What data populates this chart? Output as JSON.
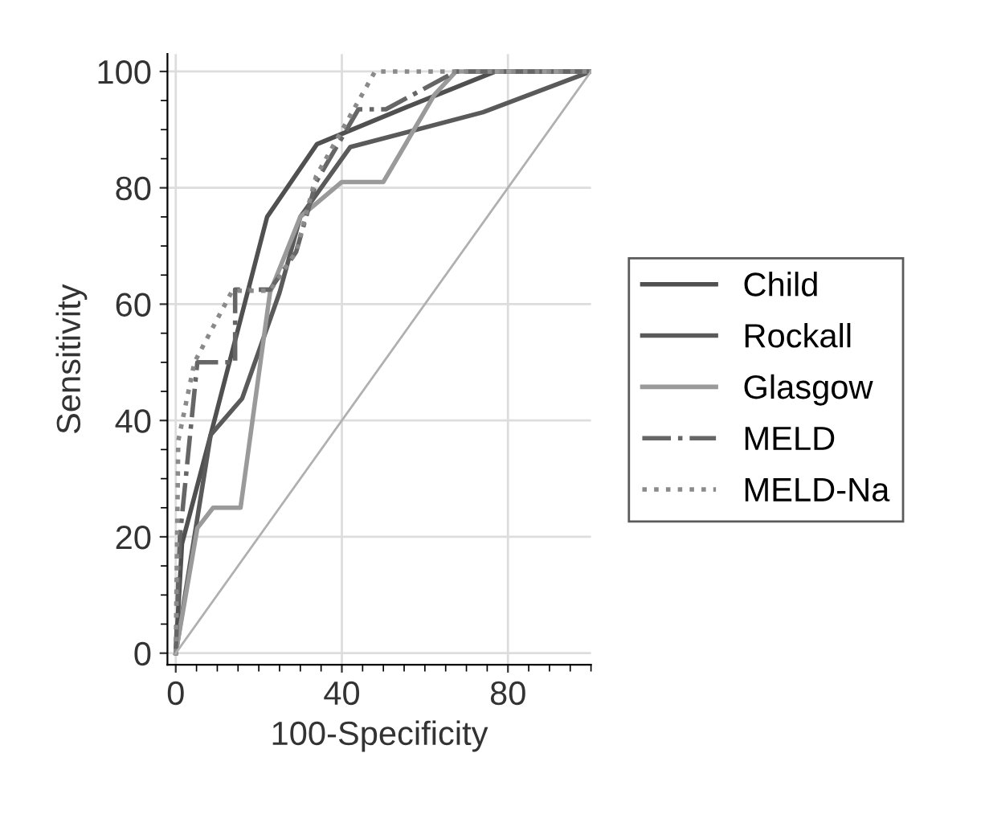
{
  "chart_data": {
    "type": "line",
    "xlabel": "100-Specificity",
    "ylabel": "Sensitivity",
    "xlim": [
      -2,
      100
    ],
    "ylim": [
      -2,
      103
    ],
    "xticks": [
      0,
      40,
      80
    ],
    "yticks": [
      0,
      20,
      40,
      60,
      80,
      100
    ],
    "grid": true,
    "legend": "right",
    "marker": "none",
    "series": [
      {
        "name": "Child",
        "color": "#505050",
        "line_style": "solid",
        "x": [
          0,
          1.5,
          8.4,
          22,
          34,
          56,
          77,
          100
        ],
        "values": [
          0,
          18.8,
          37.5,
          75,
          87.5,
          94,
          100,
          100
        ]
      },
      {
        "name": "Rockall",
        "color": "#5a5a5a",
        "line_style": "solid",
        "x": [
          0,
          8.4,
          16,
          25,
          30,
          42,
          74,
          100
        ],
        "values": [
          0,
          37.5,
          43.8,
          62,
          75,
          87,
          93,
          100
        ]
      },
      {
        "name": "Glasgow",
        "color": "#9a9a9a",
        "line_style": "solid",
        "x": [
          0,
          5.2,
          9,
          15.6,
          22.7,
          30,
          40,
          50,
          62.3,
          67.5,
          100
        ],
        "values": [
          0,
          21.5,
          25,
          25,
          62,
          75,
          81,
          81,
          96,
          100,
          100
        ]
      },
      {
        "name": "MELD",
        "color": "#666666",
        "line_style": "dashdot",
        "x": [
          0,
          1,
          5.2,
          14.3,
          14.3,
          22.7,
          29,
          33.8,
          44,
          50.6,
          67.5,
          100
        ],
        "values": [
          0,
          20,
          50,
          50,
          62.5,
          62.5,
          69,
          81,
          93.5,
          93.5,
          100,
          100
        ]
      },
      {
        "name": "MELD-Na",
        "color": "#8a8a8a",
        "line_style": "dotted",
        "x": [
          0,
          0.6,
          4.5,
          13.6,
          22.7,
          29,
          33.8,
          48,
          100
        ],
        "values": [
          0,
          36.5,
          50,
          62.3,
          62.3,
          69,
          82,
          100,
          100
        ]
      },
      {
        "color": "#b0b0b0",
        "line_style": "solid",
        "x": [
          0,
          100
        ],
        "values": [
          0,
          100
        ]
      }
    ]
  }
}
